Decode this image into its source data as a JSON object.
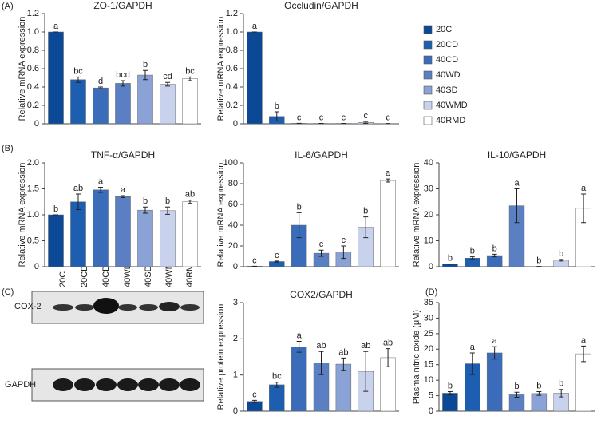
{
  "panels": [
    "(A)",
    "(B)",
    "(C)",
    "(D)"
  ],
  "legend": [
    {
      "name": "20C",
      "color": "#0b4896"
    },
    {
      "name": "20CD",
      "color": "#1e5eb0"
    },
    {
      "name": "40CD",
      "color": "#3a6cba"
    },
    {
      "name": "40WD",
      "color": "#5b7fc3"
    },
    {
      "name": "40SD",
      "color": "#8aa2d5"
    },
    {
      "name": "40WMD",
      "color": "#c9d2ec"
    },
    {
      "name": "40RMD",
      "color": "#ffffff"
    }
  ],
  "blot": {
    "lanes": [
      "20C",
      "20CD",
      "40CD",
      "40WD",
      "40SD",
      "40WMD",
      "40RMD"
    ],
    "rows": [
      "COX-2",
      "GAPDH"
    ]
  },
  "chart_data": [
    {
      "type": "bar",
      "title": "ZO-1/GAPDH",
      "ylabel": "Relative mRNA expression",
      "values": [
        1.0,
        0.48,
        0.39,
        0.44,
        0.53,
        0.43,
        0.49
      ],
      "errors": [
        0,
        0.03,
        0.01,
        0.03,
        0.05,
        0.02,
        0.02
      ],
      "letters": [
        "a",
        "bc",
        "d",
        "bcd",
        "b",
        "cd",
        "bc"
      ],
      "ylim": [
        0,
        1.2
      ],
      "yticks": [
        0,
        0.2,
        0.4,
        0.6,
        0.8,
        {
          "value": 1,
          "label": "1.0"
        },
        1.2
      ]
    },
    {
      "type": "bar",
      "title": "Occludin/GAPDH",
      "ylabel": "Relative mRNA expression",
      "values": [
        1.0,
        0.08,
        0.005,
        0.004,
        0.004,
        0.015,
        0.003
      ],
      "errors": [
        0,
        0.05,
        0,
        0,
        0,
        0.01,
        0
      ],
      "letters": [
        "a",
        "b",
        "c",
        "c",
        "c",
        "c",
        "c"
      ],
      "ylim": [
        0,
        1.2
      ],
      "yticks": [
        0,
        0.2,
        0.4,
        0.6,
        0.8,
        {
          "value": 1,
          "label": "1.0"
        },
        1.2
      ]
    },
    {
      "type": "bar",
      "title": "TNF-α/GAPDH",
      "ylabel": "Relative mRNA expression",
      "values": [
        1.0,
        1.25,
        1.48,
        1.35,
        1.09,
        1.08,
        1.25
      ],
      "errors": [
        0,
        0.15,
        0.05,
        0.02,
        0.06,
        0.07,
        0.03
      ],
      "letters": [
        "b",
        "ab",
        "a",
        "a",
        "b",
        "b",
        "ab"
      ],
      "ylim": [
        0,
        2
      ],
      "yticks": [
        0,
        0.5,
        {
          "value": 1,
          "label": "1.0"
        },
        1.5,
        {
          "value": 2,
          "label": "2.0"
        }
      ]
    },
    {
      "type": "bar",
      "title": "IL-6/GAPDH",
      "ylabel": "Relative mRNA expression",
      "values": [
        0.5,
        5,
        40,
        13,
        14,
        38,
        83
      ],
      "errors": [
        0,
        0.5,
        12,
        3,
        6,
        10,
        1.5
      ],
      "letters": [
        "c",
        "c",
        "b",
        "c",
        "c",
        "b",
        "a"
      ],
      "ylim": [
        0,
        100
      ],
      "yticks": [
        0,
        20,
        40,
        60,
        80,
        100
      ]
    },
    {
      "type": "bar",
      "title": "IL-10/GAPDH",
      "ylabel": "Relative mRNA expression",
      "values": [
        1,
        3.3,
        4.3,
        23.5,
        0.1,
        2.5,
        22.5
      ],
      "errors": [
        0,
        0.5,
        0.5,
        6.5,
        0,
        0.3,
        5.5
      ],
      "letters": [
        "b",
        "b",
        "b",
        "a",
        "b",
        "b",
        "a"
      ],
      "ylim": [
        0,
        40
      ],
      "yticks": [
        0,
        10,
        20,
        30,
        40
      ]
    },
    {
      "type": "bar",
      "title": "COX2/GAPDH",
      "ylabel": "Relative protein expression",
      "values": [
        0.27,
        0.73,
        1.78,
        1.33,
        1.3,
        1.1,
        1.48
      ],
      "errors": [
        0.03,
        0.07,
        0.15,
        0.32,
        0.17,
        0.55,
        0.25
      ],
      "letters": [
        "c",
        "bc",
        "a",
        "ab",
        "ab",
        "ab",
        "ab"
      ],
      "ylim": [
        0,
        3
      ],
      "yticks": [
        0,
        1,
        2,
        3
      ]
    },
    {
      "type": "bar",
      "ylabel": "Plasma nitric oxide (μM)",
      "values": [
        5.8,
        15.3,
        18.8,
        5.3,
        5.7,
        5.8,
        18.5
      ],
      "errors": [
        0.5,
        3.5,
        2,
        0.8,
        0.6,
        1.2,
        2.5
      ],
      "letters": [
        "b",
        "a",
        "a",
        "b",
        "b",
        "b",
        "a"
      ],
      "ylim": [
        0,
        35
      ],
      "yticks": [
        0,
        5,
        10,
        15,
        20,
        25,
        30,
        35
      ]
    }
  ]
}
